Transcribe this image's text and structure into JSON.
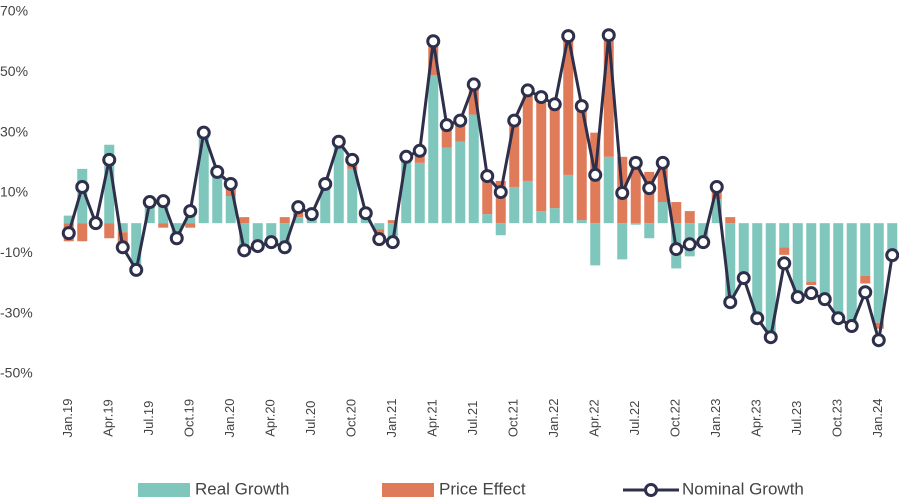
{
  "chart_data": {
    "type": "bar",
    "stacked": true,
    "categories": [
      "Jan.19",
      null,
      null,
      "Apr.19",
      null,
      null,
      "Jul.19",
      null,
      null,
      "Oct.19",
      null,
      null,
      "Jan.20",
      null,
      null,
      "Apr.20",
      null,
      null,
      "Jul.20",
      null,
      null,
      "Oct.20",
      null,
      null,
      "Jan.21",
      null,
      null,
      "Apr.21",
      null,
      null,
      "Jul.21",
      null,
      null,
      "Oct.21",
      null,
      null,
      "Jan.22",
      null,
      null,
      "Apr.22",
      null,
      null,
      "Jul.22",
      null,
      null,
      "Oct.22",
      null,
      null,
      "Jan.23",
      null,
      null,
      "Apr.23",
      null,
      null,
      "Jul.23",
      null,
      null,
      "Oct.23",
      null,
      null,
      "Jan.24",
      null
    ],
    "series": [
      {
        "name": "Real Growth",
        "kind": "bar",
        "color": "#7fc6bc",
        "values": [
          2.5,
          18,
          0.5,
          26,
          -3,
          -15.5,
          7,
          7,
          -5,
          3,
          30,
          17,
          9,
          -9,
          -7.6,
          -6.3,
          -8,
          2,
          2.5,
          13,
          27,
          18,
          3,
          -2,
          -6,
          21,
          20,
          49,
          25,
          27,
          36,
          3,
          -4,
          12,
          14,
          4,
          5,
          16,
          1,
          -14,
          22,
          -12,
          -0.5,
          -5,
          7,
          -15,
          -11,
          -6.3,
          8,
          -26,
          -18,
          -31.5,
          -37.8,
          -8,
          -24.5,
          -19.5,
          -25,
          -31.5,
          -34,
          -17.5,
          -33,
          -10.6
        ]
      },
      {
        "name": "Price Effect",
        "kind": "bar",
        "color": "#e07b5a",
        "values": [
          -6,
          -6,
          -0.5,
          -5,
          -5,
          0,
          0,
          -1.5,
          0,
          -1.5,
          0,
          0,
          4,
          2,
          0,
          0,
          2,
          3,
          0.5,
          0,
          0,
          3,
          0,
          -3,
          1,
          1,
          3,
          10,
          7,
          7,
          10,
          13,
          14,
          22,
          30,
          38,
          34,
          46,
          38,
          30,
          40,
          22,
          22,
          17,
          13,
          7,
          4,
          0,
          4,
          2,
          0,
          0,
          0,
          -2.5,
          0,
          -1,
          0,
          0,
          0,
          -2.5,
          -2,
          0
        ]
      },
      {
        "name": "Nominal Growth",
        "kind": "line",
        "color": "#2e2f4a",
        "values": [
          -3.3,
          12,
          0,
          21,
          -8,
          -15.5,
          7,
          7.3,
          -5,
          4,
          30,
          17,
          13,
          -9,
          -7.6,
          -6.3,
          -8,
          5.3,
          3,
          13,
          27,
          21,
          3.3,
          -5.3,
          -6.3,
          22,
          24,
          60.3,
          32.5,
          34,
          46,
          15.6,
          10.3,
          34,
          44,
          41.8,
          39.4,
          62,
          38.8,
          16,
          62.3,
          10,
          20,
          11.6,
          20,
          -8.6,
          -7,
          -6.3,
          12,
          -26.2,
          -18.2,
          -31.5,
          -37.8,
          -13.3,
          -24.5,
          -23.2,
          -25.2,
          -31.5,
          -34.1,
          -22.9,
          -38.8,
          -10.6
        ]
      }
    ],
    "ylim": [
      -50,
      70
    ],
    "yticks": [
      {
        "value": 70,
        "label": "70%"
      },
      {
        "value": 50,
        "label": "50%"
      },
      {
        "value": 30,
        "label": "30%"
      },
      {
        "value": 10,
        "label": "10%"
      },
      {
        "value": -10,
        "label": "-10%"
      },
      {
        "value": -30,
        "label": "-30%"
      },
      {
        "value": -50,
        "label": "-50%"
      }
    ],
    "grid": false
  }
}
